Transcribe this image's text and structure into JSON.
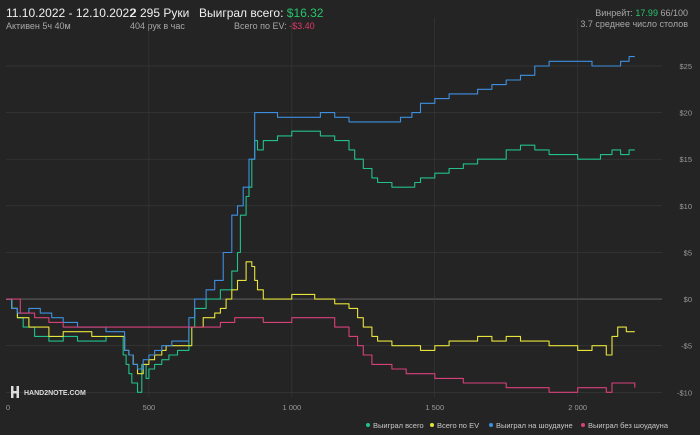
{
  "header": {
    "date_range": "11.10.2022 - 12.10.2022",
    "active_time": "Активен 5ч 40м",
    "hands": "2 295 Руки",
    "hands_per_hour": "404 рук в час",
    "won_total_label": "Выиграл всего:",
    "won_total_value": "$16.32",
    "ev_label": "Всего по EV:",
    "ev_value": "-$3.40",
    "winrate_label": "Винрейт:",
    "winrate_value": "17.99",
    "winrate_unit": "66/100",
    "avg_tables": "3.7 среднее число столов"
  },
  "logo": {
    "text": "HAND2NOTE.COM"
  },
  "colors": {
    "background": "#242424",
    "grid": "#3a3a3a",
    "zero_line": "#6a6a6a",
    "won_total": "#22c08a",
    "ev_total": "#e8e43a",
    "showdown": "#3e8fe0",
    "non_showdown": "#d8407a"
  },
  "chart_data": {
    "type": "line",
    "title": "",
    "xlabel": "",
    "ylabel": "",
    "xlim": [
      0,
      2295
    ],
    "ylim": [
      -10.5,
      28
    ],
    "x_ticks": [
      0,
      500,
      1000,
      1500,
      2000
    ],
    "x_tick_labels": [
      "0",
      "500",
      "1 000",
      "1 500",
      "2 000"
    ],
    "y_ticks": [
      -10,
      -5,
      0,
      5,
      10,
      15,
      20,
      25
    ],
    "y_tick_labels": [
      "-$10",
      "-$5",
      "$0",
      "$5",
      "$10",
      "$15",
      "$20",
      "$25"
    ],
    "grid": true,
    "legend_position": "bottom-right",
    "series": [
      {
        "name": "Выиграл всего",
        "color": "#22c08a",
        "points": [
          [
            0,
            0
          ],
          [
            20,
            -1
          ],
          [
            40,
            -2
          ],
          [
            60,
            -3
          ],
          [
            100,
            -4
          ],
          [
            150,
            -4.5
          ],
          [
            200,
            -4
          ],
          [
            250,
            -4.5
          ],
          [
            300,
            -4.5
          ],
          [
            350,
            -4
          ],
          [
            400,
            -4
          ],
          [
            410,
            -6
          ],
          [
            420,
            -7
          ],
          [
            430,
            -8
          ],
          [
            440,
            -9
          ],
          [
            460,
            -10
          ],
          [
            475,
            -7
          ],
          [
            490,
            -8.5
          ],
          [
            500,
            -7.5
          ],
          [
            520,
            -7
          ],
          [
            545,
            -6.5
          ],
          [
            570,
            -6
          ],
          [
            600,
            -5.5
          ],
          [
            630,
            -5.5
          ],
          [
            640,
            -3
          ],
          [
            660,
            -1
          ],
          [
            700,
            0
          ],
          [
            720,
            0
          ],
          [
            750,
            1
          ],
          [
            790,
            3
          ],
          [
            810,
            5
          ],
          [
            820,
            9
          ],
          [
            840,
            11
          ],
          [
            850,
            12
          ],
          [
            860,
            15
          ],
          [
            870,
            17
          ],
          [
            880,
            16
          ],
          [
            900,
            17
          ],
          [
            950,
            17.5
          ],
          [
            1000,
            18
          ],
          [
            1050,
            18
          ],
          [
            1100,
            17.5
          ],
          [
            1150,
            17
          ],
          [
            1200,
            16
          ],
          [
            1220,
            15
          ],
          [
            1250,
            14
          ],
          [
            1280,
            13
          ],
          [
            1300,
            12.5
          ],
          [
            1350,
            12
          ],
          [
            1400,
            12
          ],
          [
            1430,
            12.5
          ],
          [
            1450,
            13
          ],
          [
            1500,
            13.5
          ],
          [
            1550,
            14
          ],
          [
            1600,
            14.5
          ],
          [
            1650,
            15
          ],
          [
            1700,
            15
          ],
          [
            1750,
            16
          ],
          [
            1800,
            16.5
          ],
          [
            1850,
            16
          ],
          [
            1900,
            15.5
          ],
          [
            1950,
            15.5
          ],
          [
            2000,
            15
          ],
          [
            2050,
            15
          ],
          [
            2080,
            15.5
          ],
          [
            2120,
            16
          ],
          [
            2150,
            15.5
          ],
          [
            2180,
            16
          ],
          [
            2200,
            16
          ]
        ]
      },
      {
        "name": "Всего по EV",
        "color": "#e8e43a",
        "points": [
          [
            0,
            0
          ],
          [
            20,
            -1
          ],
          [
            40,
            -2
          ],
          [
            80,
            -3
          ],
          [
            150,
            -4
          ],
          [
            200,
            -3.5
          ],
          [
            250,
            -3.5
          ],
          [
            300,
            -4
          ],
          [
            350,
            -4
          ],
          [
            400,
            -4
          ],
          [
            415,
            -5.5
          ],
          [
            430,
            -6
          ],
          [
            445,
            -7
          ],
          [
            460,
            -8
          ],
          [
            480,
            -7
          ],
          [
            500,
            -6.5
          ],
          [
            520,
            -6
          ],
          [
            545,
            -5.5
          ],
          [
            560,
            -5
          ],
          [
            620,
            -5
          ],
          [
            650,
            -3
          ],
          [
            690,
            -2
          ],
          [
            730,
            -1.5
          ],
          [
            750,
            -1
          ],
          [
            770,
            0
          ],
          [
            790,
            1
          ],
          [
            810,
            2
          ],
          [
            840,
            4
          ],
          [
            860,
            3.5
          ],
          [
            870,
            2
          ],
          [
            880,
            1
          ],
          [
            900,
            0
          ],
          [
            950,
            0
          ],
          [
            1000,
            0.5
          ],
          [
            1050,
            0.5
          ],
          [
            1080,
            0
          ],
          [
            1110,
            0
          ],
          [
            1150,
            -0.5
          ],
          [
            1200,
            -1
          ],
          [
            1230,
            -2
          ],
          [
            1250,
            -3
          ],
          [
            1280,
            -4
          ],
          [
            1300,
            -4.5
          ],
          [
            1350,
            -5
          ],
          [
            1400,
            -5
          ],
          [
            1450,
            -5.5
          ],
          [
            1500,
            -5
          ],
          [
            1550,
            -4.5
          ],
          [
            1600,
            -4.5
          ],
          [
            1650,
            -4
          ],
          [
            1700,
            -4.5
          ],
          [
            1750,
            -4
          ],
          [
            1800,
            -4.5
          ],
          [
            1850,
            -4.5
          ],
          [
            1900,
            -5
          ],
          [
            1950,
            -5
          ],
          [
            2000,
            -5.5
          ],
          [
            2050,
            -5
          ],
          [
            2100,
            -6
          ],
          [
            2120,
            -4
          ],
          [
            2140,
            -3
          ],
          [
            2170,
            -3.5
          ],
          [
            2200,
            -3.5
          ]
        ]
      },
      {
        "name": "Выиграл на шоудауне",
        "color": "#3e8fe0",
        "points": [
          [
            0,
            0
          ],
          [
            20,
            -1
          ],
          [
            40,
            -1.5
          ],
          [
            80,
            -1
          ],
          [
            120,
            -1.5
          ],
          [
            160,
            -2
          ],
          [
            200,
            -2.5
          ],
          [
            250,
            -3
          ],
          [
            300,
            -3
          ],
          [
            350,
            -3.5
          ],
          [
            400,
            -3.5
          ],
          [
            415,
            -5.5
          ],
          [
            430,
            -6
          ],
          [
            445,
            -7
          ],
          [
            460,
            -7.5
          ],
          [
            480,
            -6.5
          ],
          [
            500,
            -6
          ],
          [
            520,
            -5.5
          ],
          [
            545,
            -5
          ],
          [
            580,
            -4.5
          ],
          [
            620,
            -4.5
          ],
          [
            640,
            -2
          ],
          [
            660,
            0
          ],
          [
            700,
            1
          ],
          [
            730,
            2
          ],
          [
            760,
            5
          ],
          [
            790,
            9
          ],
          [
            810,
            10
          ],
          [
            830,
            12
          ],
          [
            850,
            15
          ],
          [
            870,
            20
          ],
          [
            880,
            20
          ],
          [
            900,
            20
          ],
          [
            950,
            19.5
          ],
          [
            1000,
            19.5
          ],
          [
            1050,
            19.5
          ],
          [
            1100,
            20
          ],
          [
            1150,
            19.5
          ],
          [
            1200,
            19
          ],
          [
            1250,
            19
          ],
          [
            1300,
            19
          ],
          [
            1350,
            19
          ],
          [
            1380,
            19.5
          ],
          [
            1400,
            19.5
          ],
          [
            1420,
            20
          ],
          [
            1450,
            21
          ],
          [
            1500,
            21.5
          ],
          [
            1550,
            22
          ],
          [
            1600,
            22
          ],
          [
            1650,
            22.5
          ],
          [
            1700,
            23
          ],
          [
            1750,
            23.5
          ],
          [
            1800,
            24
          ],
          [
            1850,
            25
          ],
          [
            1900,
            25.5
          ],
          [
            1950,
            25.5
          ],
          [
            2000,
            25.5
          ],
          [
            2050,
            25
          ],
          [
            2100,
            25
          ],
          [
            2150,
            25.5
          ],
          [
            2180,
            26
          ],
          [
            2200,
            26
          ]
        ]
      },
      {
        "name": "Выиграл без шоудауна",
        "color": "#d8407a",
        "points": [
          [
            0,
            0
          ],
          [
            50,
            -1.5
          ],
          [
            100,
            -2
          ],
          [
            150,
            -2.5
          ],
          [
            200,
            -3
          ],
          [
            250,
            -3
          ],
          [
            300,
            -3
          ],
          [
            350,
            -3
          ],
          [
            400,
            -3
          ],
          [
            450,
            -3
          ],
          [
            500,
            -3
          ],
          [
            550,
            -3
          ],
          [
            600,
            -3
          ],
          [
            650,
            -3
          ],
          [
            700,
            -3
          ],
          [
            750,
            -2.5
          ],
          [
            800,
            -2
          ],
          [
            850,
            -2
          ],
          [
            900,
            -2.5
          ],
          [
            950,
            -2.5
          ],
          [
            1000,
            -2
          ],
          [
            1050,
            -2
          ],
          [
            1100,
            -2
          ],
          [
            1150,
            -3
          ],
          [
            1200,
            -4
          ],
          [
            1230,
            -5
          ],
          [
            1250,
            -6
          ],
          [
            1280,
            -7
          ],
          [
            1300,
            -7
          ],
          [
            1350,
            -7.5
          ],
          [
            1400,
            -8
          ],
          [
            1450,
            -8
          ],
          [
            1500,
            -8.5
          ],
          [
            1550,
            -8.5
          ],
          [
            1600,
            -9
          ],
          [
            1650,
            -9
          ],
          [
            1700,
            -9
          ],
          [
            1750,
            -9.5
          ],
          [
            1800,
            -9.5
          ],
          [
            1850,
            -9.5
          ],
          [
            1900,
            -10
          ],
          [
            1950,
            -10
          ],
          [
            2000,
            -9.5
          ],
          [
            2050,
            -9.5
          ],
          [
            2100,
            -10
          ],
          [
            2120,
            -9
          ],
          [
            2150,
            -9
          ],
          [
            2200,
            -9.5
          ]
        ]
      }
    ]
  }
}
